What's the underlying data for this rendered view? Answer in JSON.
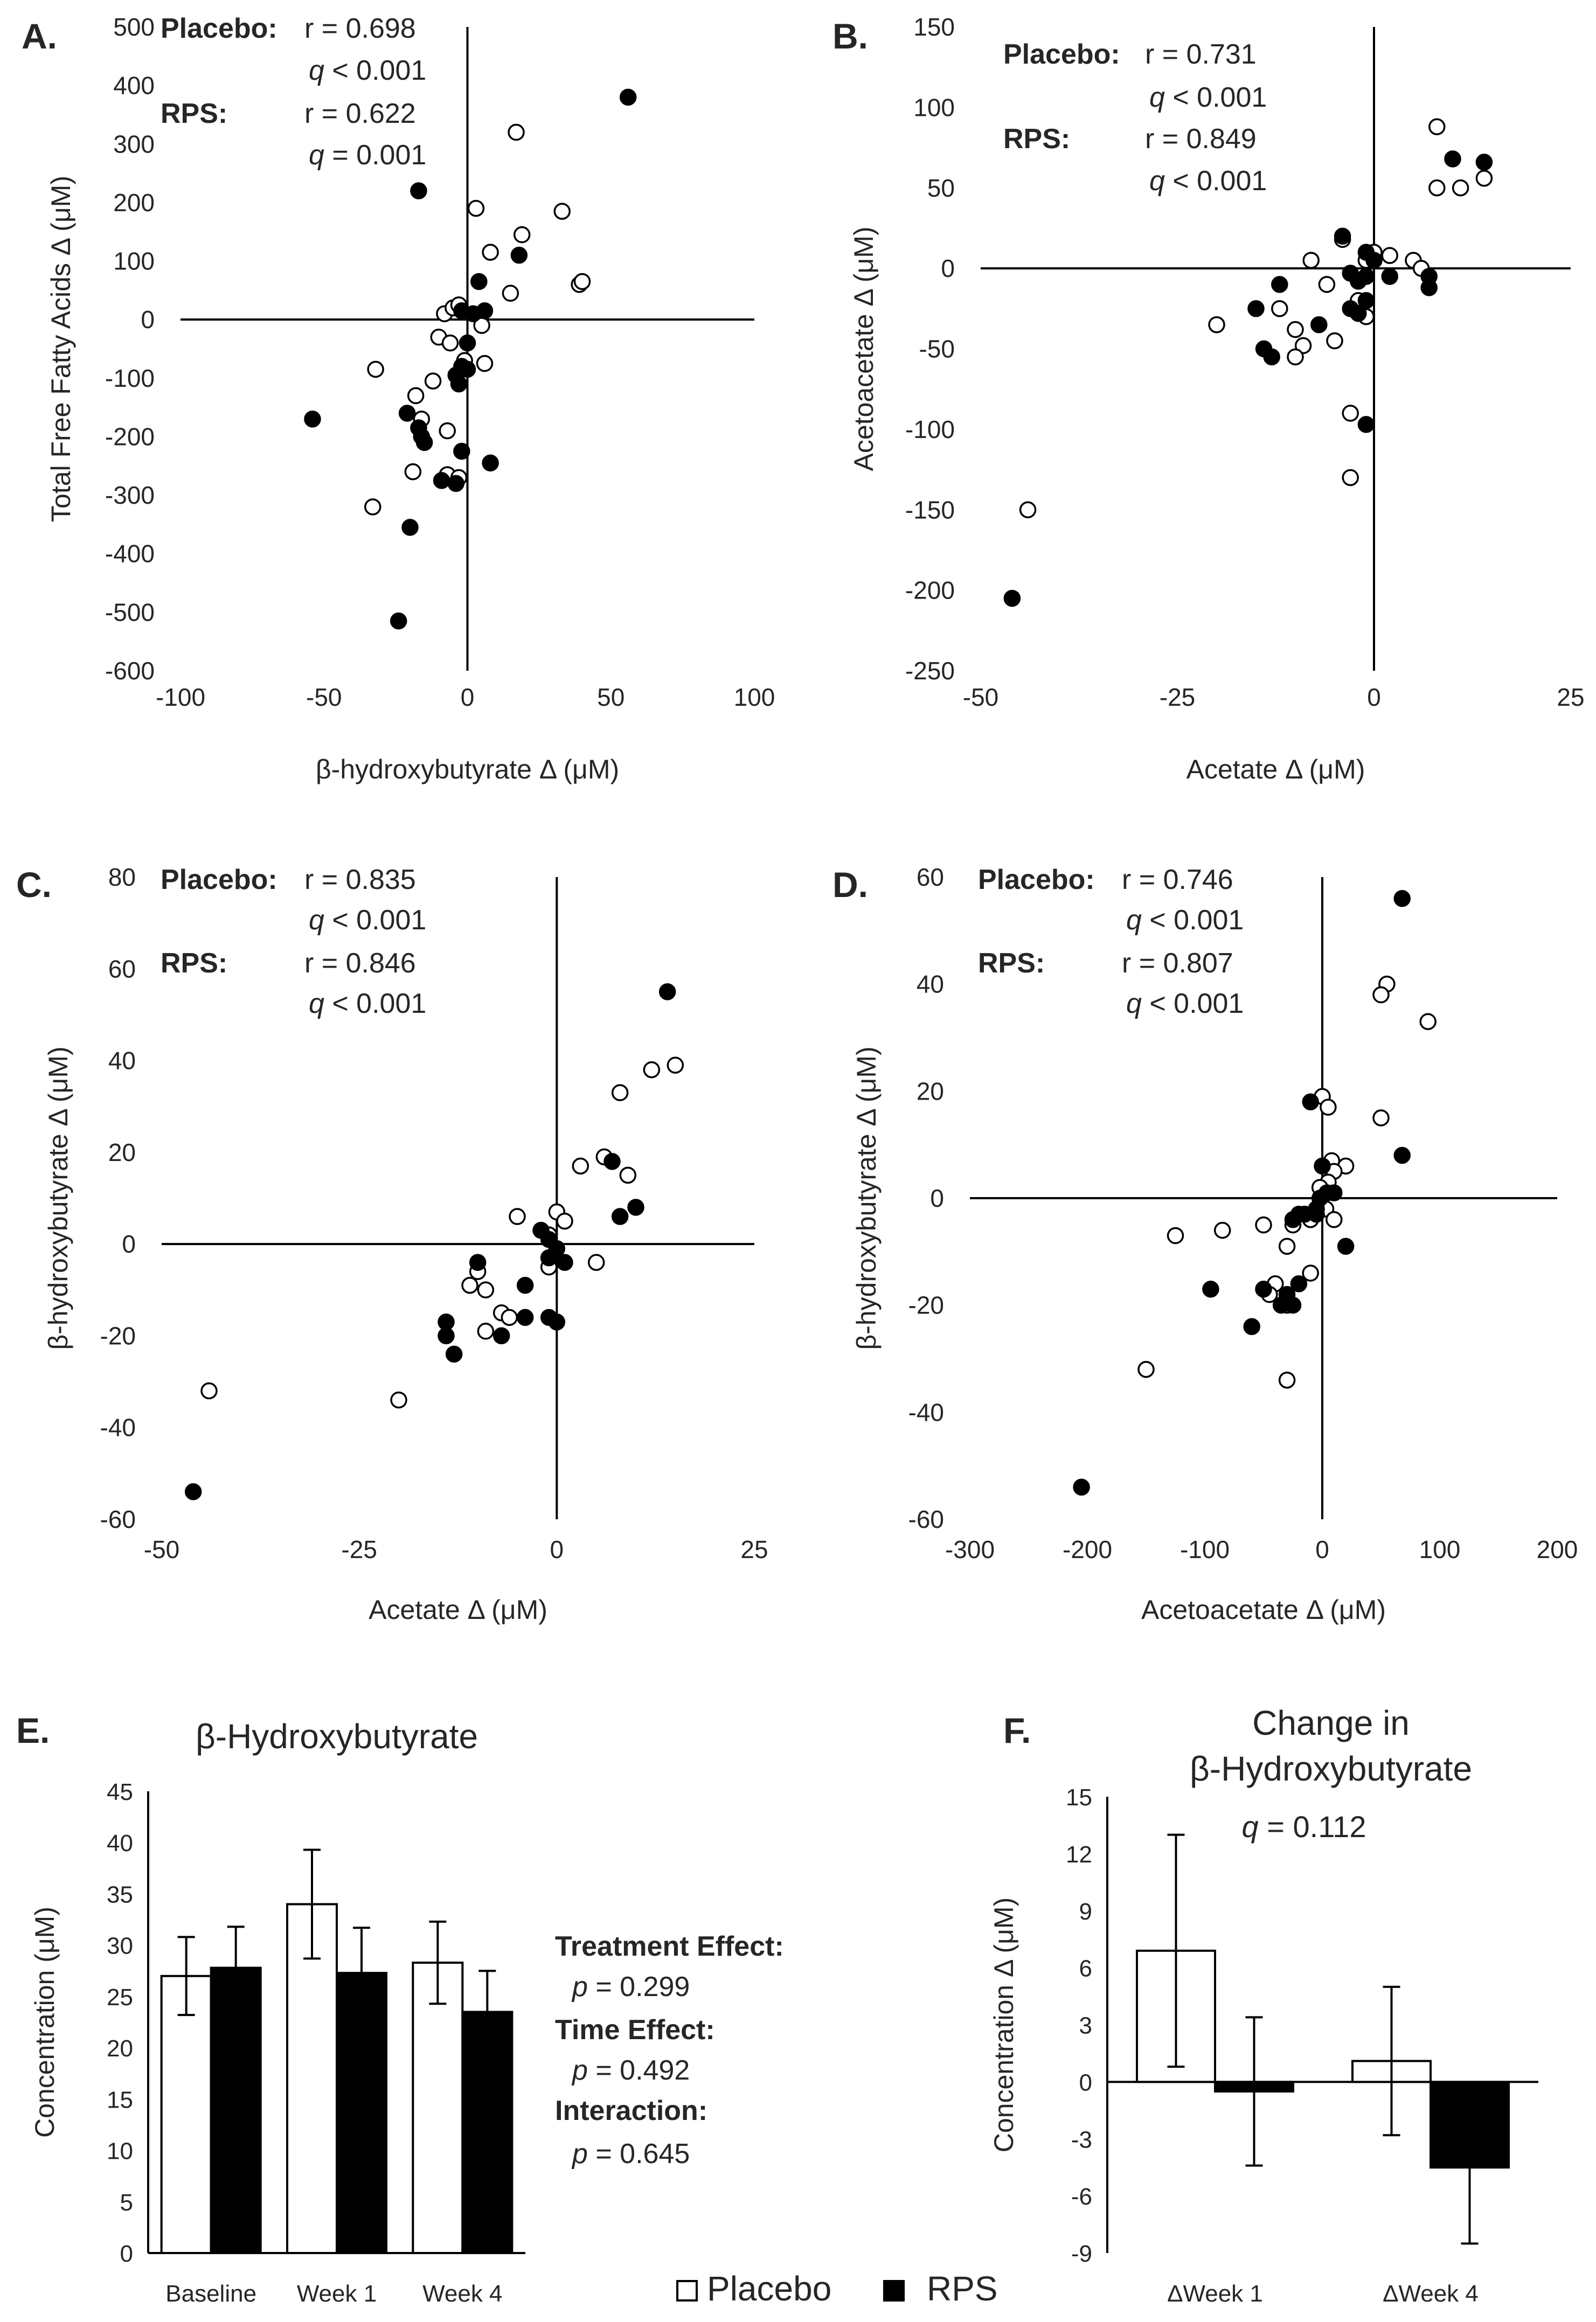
{
  "legend": {
    "placebo": "Placebo",
    "rps": "RPS"
  },
  "chart_data": [
    {
      "id": "A",
      "panel_label": "A.",
      "type": "scatter",
      "xlabel": "β-hydroxybutyrate  Δ (μM)",
      "ylabel": "Total Free Fatty Acids  Δ (μM)",
      "xlim": [
        -100,
        100
      ],
      "ylim": [
        -600,
        500
      ],
      "xticks": [
        -100,
        -50,
        0,
        50,
        100
      ],
      "yticks": [
        -600,
        -500,
        -400,
        -300,
        -200,
        -100,
        0,
        100,
        200,
        300,
        400,
        500
      ],
      "stats": [
        {
          "group": "Placebo:",
          "r": "r = 0.698",
          "q_sym": "q",
          "q_val": " < 0.001"
        },
        {
          "group": "RPS:",
          "r": "r = 0.622",
          "q_sym": "q",
          "q_val": " = 0.001"
        }
      ],
      "series": [
        {
          "name": "Placebo",
          "marker": "open",
          "points": [
            [
              17,
              320
            ],
            [
              3,
              190
            ],
            [
              19,
              145
            ],
            [
              33,
              185
            ],
            [
              8,
              115
            ],
            [
              15,
              45
            ],
            [
              39,
              60
            ],
            [
              40,
              65
            ],
            [
              -8,
              10
            ],
            [
              -5,
              20
            ],
            [
              -3,
              25
            ],
            [
              -10,
              -30
            ],
            [
              -6,
              -40
            ],
            [
              -1,
              -70
            ],
            [
              5,
              -10
            ],
            [
              6,
              -75
            ],
            [
              -12,
              -105
            ],
            [
              -18,
              -130
            ],
            [
              -16,
              -170
            ],
            [
              -7,
              -190
            ],
            [
              -32,
              -85
            ],
            [
              -19,
              -260
            ],
            [
              -7,
              -265
            ],
            [
              -3,
              -270
            ],
            [
              -33,
              -320
            ]
          ]
        },
        {
          "name": "RPS",
          "marker": "filled",
          "points": [
            [
              56,
              380
            ],
            [
              -17,
              220
            ],
            [
              18,
              110
            ],
            [
              4,
              65
            ],
            [
              -2,
              15
            ],
            [
              2,
              10
            ],
            [
              6,
              15
            ],
            [
              0,
              -40
            ],
            [
              -2,
              -80
            ],
            [
              0,
              -85
            ],
            [
              -4,
              -95
            ],
            [
              -3,
              -110
            ],
            [
              -21,
              -160
            ],
            [
              -17,
              -185
            ],
            [
              -16,
              -200
            ],
            [
              -15,
              -210
            ],
            [
              -2,
              -225
            ],
            [
              -54,
              -170
            ],
            [
              8,
              -245
            ],
            [
              -9,
              -275
            ],
            [
              -4,
              -280
            ],
            [
              -20,
              -355
            ],
            [
              -24,
              -515
            ]
          ]
        }
      ]
    },
    {
      "id": "B",
      "panel_label": "B.",
      "type": "scatter",
      "xlabel": "Acetate Δ (μM)",
      "ylabel": "Acetoacetate  Δ (μM)",
      "xlim": [
        -50,
        25
      ],
      "ylim": [
        -250,
        150
      ],
      "xticks": [
        -50,
        -25,
        0,
        25
      ],
      "yticks": [
        -250,
        -200,
        -150,
        -100,
        -50,
        0,
        50,
        100,
        150
      ],
      "stats": [
        {
          "group": "Placebo:",
          "r": "r = 0.731",
          "q_sym": "q",
          "q_val": " < 0.001"
        },
        {
          "group": "RPS:",
          "r": "r = 0.849",
          "q_sym": "q",
          "q_val": " < 0.001"
        }
      ],
      "series": [
        {
          "name": "Placebo",
          "marker": "open",
          "points": [
            [
              8,
              88
            ],
            [
              14,
              56
            ],
            [
              11,
              50
            ],
            [
              8,
              50
            ],
            [
              -4,
              18
            ],
            [
              -8,
              5
            ],
            [
              -1,
              5
            ],
            [
              0,
              10
            ],
            [
              2,
              8
            ],
            [
              5,
              5
            ],
            [
              6,
              0
            ],
            [
              -6,
              -10
            ],
            [
              -12,
              -25
            ],
            [
              -20,
              -35
            ],
            [
              -10,
              -38
            ],
            [
              -9,
              -48
            ],
            [
              -5,
              -45
            ],
            [
              -10,
              -55
            ],
            [
              -3,
              -90
            ],
            [
              -3,
              -130
            ],
            [
              -1,
              -30
            ],
            [
              -2,
              -20
            ],
            [
              -44,
              -150
            ]
          ]
        },
        {
          "name": "RPS",
          "marker": "filled",
          "points": [
            [
              10,
              68
            ],
            [
              14,
              66
            ],
            [
              -4,
              20
            ],
            [
              -1,
              10
            ],
            [
              0,
              5
            ],
            [
              2,
              -5
            ],
            [
              -1,
              -5
            ],
            [
              -3,
              -3
            ],
            [
              -2,
              -8
            ],
            [
              -7,
              -35
            ],
            [
              -3,
              -25
            ],
            [
              -1,
              -20
            ],
            [
              -2,
              -28
            ],
            [
              -12,
              -10
            ],
            [
              -15,
              -25
            ],
            [
              -14,
              -50
            ],
            [
              -13,
              -55
            ],
            [
              -1,
              -97
            ],
            [
              7,
              -5
            ],
            [
              7,
              -12
            ],
            [
              -46,
              -205
            ]
          ]
        }
      ]
    },
    {
      "id": "C",
      "panel_label": "C.",
      "type": "scatter",
      "xlabel": "Acetate Δ (μM)",
      "ylabel": "β-hydroxybutyrate  Δ (μM)",
      "xlim": [
        -50,
        25
      ],
      "ylim": [
        -60,
        80
      ],
      "xticks": [
        -50,
        -25,
        0,
        25
      ],
      "yticks": [
        -60,
        -40,
        -20,
        0,
        20,
        40,
        60,
        80
      ],
      "stats": [
        {
          "group": "Placebo:",
          "r": "r = 0.835",
          "q_sym": "q",
          "q_val": " < 0.001"
        },
        {
          "group": "RPS:",
          "r": "r = 0.846",
          "q_sym": "q",
          "q_val": " < 0.001"
        }
      ],
      "series": [
        {
          "name": "Placebo",
          "marker": "open",
          "points": [
            [
              15,
              39
            ],
            [
              12,
              38
            ],
            [
              8,
              33
            ],
            [
              6,
              19
            ],
            [
              9,
              15
            ],
            [
              3,
              17
            ],
            [
              -5,
              6
            ],
            [
              0,
              7
            ],
            [
              1,
              5
            ],
            [
              -1,
              2
            ],
            [
              -1,
              -5
            ],
            [
              -10,
              -6
            ],
            [
              -11,
              -9
            ],
            [
              -9,
              -10
            ],
            [
              -7,
              -15
            ],
            [
              -6,
              -16
            ],
            [
              -9,
              -19
            ],
            [
              5,
              -4
            ],
            [
              -20,
              -34
            ],
            [
              -44,
              -32
            ]
          ]
        },
        {
          "name": "RPS",
          "marker": "filled",
          "points": [
            [
              14,
              55
            ],
            [
              7,
              18
            ],
            [
              10,
              8
            ],
            [
              8,
              6
            ],
            [
              -2,
              3
            ],
            [
              -1,
              1
            ],
            [
              0,
              -1
            ],
            [
              -1,
              -3
            ],
            [
              1,
              -4
            ],
            [
              -4,
              -9
            ],
            [
              -7,
              -20
            ],
            [
              -4,
              -16
            ],
            [
              -1,
              -16
            ],
            [
              0,
              -17
            ],
            [
              -14,
              -17
            ],
            [
              -14,
              -20
            ],
            [
              -13,
              -24
            ],
            [
              -10,
              -4
            ],
            [
              -46,
              -54
            ]
          ]
        }
      ]
    },
    {
      "id": "D",
      "panel_label": "D.",
      "type": "scatter",
      "xlabel": "Acetoacetate Δ (μM)",
      "ylabel": "β-hydroxybutyrate  Δ (μM)",
      "xlim": [
        -300,
        200
      ],
      "ylim": [
        -60,
        60
      ],
      "xticks": [
        -300,
        -200,
        -100,
        0,
        100,
        200
      ],
      "yticks": [
        -60,
        -40,
        -20,
        0,
        20,
        40,
        60
      ],
      "stats": [
        {
          "group": "Placebo:",
          "r": "r = 0.746",
          "q_sym": "q",
          "q_val": " < 0.001"
        },
        {
          "group": "RPS:",
          "r": "r = 0.807",
          "q_sym": "q",
          "q_val": " < 0.001"
        }
      ],
      "series": [
        {
          "name": "Placebo",
          "marker": "open",
          "points": [
            [
              55,
              40
            ],
            [
              50,
              38
            ],
            [
              90,
              33
            ],
            [
              50,
              15
            ],
            [
              0,
              19
            ],
            [
              5,
              17
            ],
            [
              8,
              7
            ],
            [
              20,
              6
            ],
            [
              10,
              5
            ],
            [
              5,
              3
            ],
            [
              -2,
              2
            ],
            [
              3,
              -2
            ],
            [
              -10,
              -4
            ],
            [
              10,
              -4
            ],
            [
              -25,
              -5
            ],
            [
              -50,
              -5
            ],
            [
              -85,
              -6
            ],
            [
              -125,
              -7
            ],
            [
              -30,
              -9
            ],
            [
              -10,
              -14
            ],
            [
              -40,
              -16
            ],
            [
              -45,
              -18
            ],
            [
              -30,
              -20
            ],
            [
              -150,
              -32
            ],
            [
              -30,
              -34
            ]
          ]
        },
        {
          "name": "RPS",
          "marker": "filled",
          "points": [
            [
              68,
              56
            ],
            [
              68,
              8
            ],
            [
              -10,
              18
            ],
            [
              0,
              6
            ],
            [
              -2,
              0
            ],
            [
              4,
              1
            ],
            [
              10,
              1
            ],
            [
              -5,
              -2
            ],
            [
              -15,
              -3
            ],
            [
              -20,
              -3
            ],
            [
              20,
              -9
            ],
            [
              -25,
              -4
            ],
            [
              -20,
              -16
            ],
            [
              -30,
              -18
            ],
            [
              -25,
              -20
            ],
            [
              -35,
              -20
            ],
            [
              -50,
              -17
            ],
            [
              -60,
              -24
            ],
            [
              -95,
              -17
            ],
            [
              -5,
              -3
            ],
            [
              -205,
              -54
            ]
          ]
        }
      ]
    },
    {
      "id": "E",
      "panel_label": "E.",
      "type": "bar",
      "title": "β-Hydroxybutyrate",
      "ylabel": "Concentration  (μM)",
      "categories": [
        "Baseline",
        "Week 1",
        "Week 4"
      ],
      "ylim": [
        0,
        45
      ],
      "yticks": [
        0,
        5,
        10,
        15,
        20,
        25,
        30,
        35,
        40,
        45
      ],
      "series": [
        {
          "name": "Placebo",
          "fill": "open",
          "values": [
            27.0,
            34.0,
            28.3
          ],
          "errors": [
            3.8,
            5.3,
            4.0
          ]
        },
        {
          "name": "RPS",
          "fill": "filled",
          "values": [
            27.8,
            27.3,
            23.5
          ],
          "errors": [
            4.0,
            4.4,
            4.0
          ]
        }
      ],
      "stats_block": [
        {
          "label": "Treatment Effect:",
          "p_sym": "p",
          "p_val": " = 0.299"
        },
        {
          "label": "Time Effect:",
          "p_sym": "p",
          "p_val": " = 0.492"
        },
        {
          "label": "Interaction:",
          "p_sym": "p",
          "p_val": "  = 0.645"
        }
      ]
    },
    {
      "id": "F",
      "panel_label": "F.",
      "type": "bar",
      "title": [
        "Change in",
        "β-Hydroxybutyrate"
      ],
      "annotation": {
        "q_sym": "q",
        "q_val": " = 0.112"
      },
      "ylabel": "Concentration  Δ (μM)",
      "categories": [
        "ΔWeek 1",
        "ΔWeek 4"
      ],
      "ylim": [
        -9,
        15
      ],
      "yticks": [
        -9,
        -6,
        -3,
        0,
        3,
        6,
        9,
        12,
        15
      ],
      "series": [
        {
          "name": "Placebo",
          "fill": "open",
          "values": [
            6.9,
            1.1
          ],
          "errors": [
            6.1,
            3.9
          ]
        },
        {
          "name": "RPS",
          "fill": "filled",
          "values": [
            -0.5,
            -4.5
          ],
          "errors": [
            3.9,
            4.0
          ]
        }
      ]
    }
  ]
}
